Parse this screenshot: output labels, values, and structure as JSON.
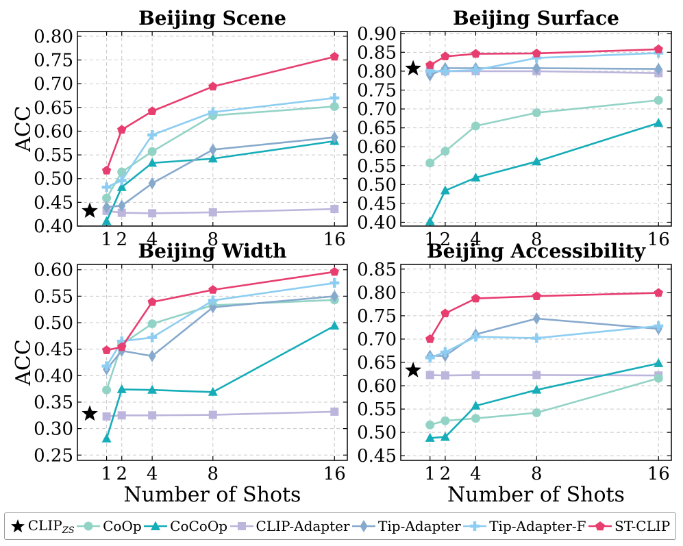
{
  "chart_data": [
    {
      "type": "line",
      "title": "Beijing Scene",
      "ylabel": "ACC",
      "xlabel": "",
      "x": [
        1,
        2,
        4,
        8,
        16
      ],
      "ylim": [
        0.4,
        0.81
      ],
      "yticks": [
        "0.40",
        "0.45",
        "0.50",
        "0.55",
        "0.60",
        "0.65",
        "0.70",
        "0.75",
        "0.80"
      ],
      "zero_shot": 0.432,
      "series": [
        {
          "name": "CoOp",
          "values": [
            0.459,
            0.514,
            0.557,
            0.633,
            0.652
          ]
        },
        {
          "name": "CoCoOp",
          "values": [
            0.41,
            0.482,
            0.533,
            0.542,
            0.579
          ]
        },
        {
          "name": "CLIP-Adapter",
          "values": [
            0.432,
            0.428,
            0.427,
            0.429,
            0.436
          ]
        },
        {
          "name": "Tip-Adapter",
          "values": [
            0.44,
            0.443,
            0.49,
            0.561,
            0.587
          ]
        },
        {
          "name": "Tip-Adapter-F",
          "values": [
            0.482,
            0.496,
            0.592,
            0.64,
            0.67
          ]
        },
        {
          "name": "ST-CLIP",
          "values": [
            0.517,
            0.603,
            0.642,
            0.694,
            0.757
          ]
        }
      ]
    },
    {
      "type": "line",
      "title": "Beijing Surface",
      "ylabel": "",
      "xlabel": "",
      "x": [
        1,
        2,
        4,
        8,
        16
      ],
      "ylim": [
        0.39,
        0.905
      ],
      "yticks": [
        "0.40",
        "0.45",
        "0.50",
        "0.55",
        "0.60",
        "0.65",
        "0.70",
        "0.75",
        "0.80",
        "0.85",
        "0.90"
      ],
      "zero_shot": 0.807,
      "series": [
        {
          "name": "CoOp",
          "values": [
            0.557,
            0.588,
            0.655,
            0.69,
            0.723
          ]
        },
        {
          "name": "CoCoOp",
          "values": [
            0.402,
            0.484,
            0.518,
            0.561,
            0.663
          ]
        },
        {
          "name": "CLIP-Adapter",
          "values": [
            0.8,
            0.8,
            0.8,
            0.8,
            0.795
          ]
        },
        {
          "name": "Tip-Adapter",
          "values": [
            0.789,
            0.808,
            0.808,
            0.808,
            0.806
          ]
        },
        {
          "name": "Tip-Adapter-F",
          "values": [
            0.8,
            0.8,
            0.803,
            0.835,
            0.848
          ]
        },
        {
          "name": "ST-CLIP",
          "values": [
            0.816,
            0.839,
            0.846,
            0.847,
            0.858
          ]
        }
      ]
    },
    {
      "type": "line",
      "title": "Beijing Width",
      "ylabel": "ACC",
      "xlabel": "Number of Shots",
      "x": [
        1,
        2,
        4,
        8,
        16
      ],
      "ylim": [
        0.24,
        0.61
      ],
      "yticks": [
        "0.25",
        "0.30",
        "0.35",
        "0.40",
        "0.45",
        "0.50",
        "0.55",
        "0.60"
      ],
      "zero_shot": 0.328,
      "series": [
        {
          "name": "CoOp",
          "values": [
            0.373,
            0.459,
            0.498,
            0.533,
            0.543
          ]
        },
        {
          "name": "CoCoOp",
          "values": [
            0.281,
            0.374,
            0.373,
            0.369,
            0.494
          ]
        },
        {
          "name": "CLIP-Adapter",
          "values": [
            0.323,
            0.325,
            0.325,
            0.326,
            0.332
          ]
        },
        {
          "name": "Tip-Adapter",
          "values": [
            0.412,
            0.447,
            0.437,
            0.529,
            0.55
          ]
        },
        {
          "name": "Tip-Adapter-F",
          "values": [
            0.418,
            0.465,
            0.472,
            0.542,
            0.575
          ]
        },
        {
          "name": "ST-CLIP",
          "values": [
            0.448,
            0.454,
            0.539,
            0.562,
            0.596
          ]
        }
      ]
    },
    {
      "type": "line",
      "title": "Beijing Accessibility",
      "ylabel": "",
      "xlabel": "Number of Shots",
      "x": [
        1,
        2,
        4,
        8,
        16
      ],
      "ylim": [
        0.44,
        0.86
      ],
      "yticks": [
        "0.45",
        "0.50",
        "0.55",
        "0.60",
        "0.65",
        "0.70",
        "0.75",
        "0.80",
        "0.85"
      ],
      "zero_shot": 0.633,
      "series": [
        {
          "name": "CoOp",
          "values": [
            0.516,
            0.525,
            0.53,
            0.542,
            0.616
          ]
        },
        {
          "name": "CoCoOp",
          "values": [
            0.488,
            0.49,
            0.557,
            0.591,
            0.648
          ]
        },
        {
          "name": "CLIP-Adapter",
          "values": [
            0.623,
            0.622,
            0.623,
            0.623,
            0.622
          ]
        },
        {
          "name": "Tip-Adapter",
          "values": [
            0.664,
            0.664,
            0.71,
            0.744,
            0.722
          ]
        },
        {
          "name": "Tip-Adapter-F",
          "values": [
            0.66,
            0.672,
            0.705,
            0.702,
            0.728
          ]
        },
        {
          "name": "ST-CLIP",
          "values": [
            0.7,
            0.755,
            0.787,
            0.792,
            0.799
          ]
        }
      ]
    }
  ],
  "xtick_labels": [
    "1",
    "2",
    "4",
    "8",
    "16"
  ],
  "legend": {
    "zero_shot": {
      "name": "CLIP",
      "sub": "ZS"
    },
    "items": [
      "CoOp",
      "CoCoOp",
      "CLIP-Adapter",
      "Tip-Adapter",
      "Tip-Adapter-F",
      "ST-CLIP"
    ]
  },
  "colors": {
    "CoOp": "#93d3c6",
    "CoCoOp": "#16adb8",
    "CLIP-Adapter": "#bcb5dc",
    "Tip-Adapter": "#86a9cc",
    "Tip-Adapter-F": "#8dcdf1",
    "ST-CLIP": "#e73d6f",
    "zero_shot": "#000000"
  },
  "markers": {
    "CoOp": "circle",
    "CoCoOp": "triangle",
    "CLIP-Adapter": "square",
    "Tip-Adapter": "diamond",
    "Tip-Adapter-F": "plus",
    "ST-CLIP": "pentagon"
  }
}
